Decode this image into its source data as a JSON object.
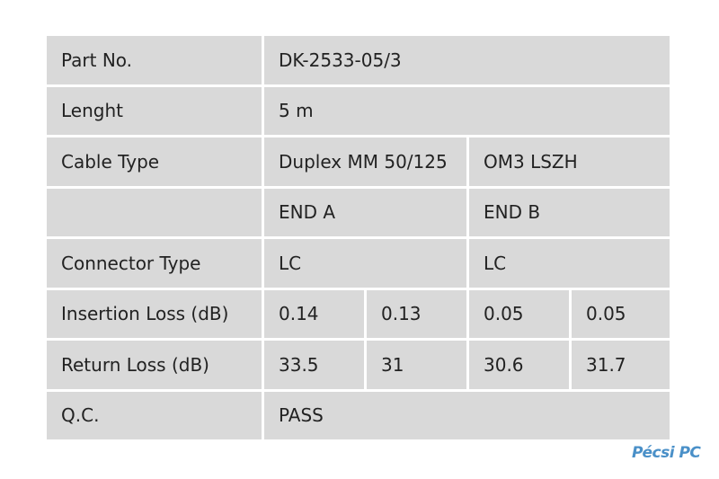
{
  "table": {
    "rows": [
      {
        "label": "Part No.",
        "cells": [
          "DK-2533-05/3"
        ]
      },
      {
        "label": "Lenght",
        "cells": [
          "5 m"
        ]
      },
      {
        "label": "Cable Type",
        "cells": [
          "Duplex MM 50/125",
          "OM3 LSZH"
        ]
      },
      {
        "label": null,
        "cells": [
          "END A",
          "END B"
        ]
      },
      {
        "label": "Connector Type",
        "cells": [
          "LC",
          "LC"
        ]
      },
      {
        "label": "Insertion Loss (dB)",
        "cells": [
          "0.14",
          "0.13",
          "0.05",
          "0.05"
        ]
      },
      {
        "label": "Return Loss (dB)",
        "cells": [
          "33.5",
          "31",
          "30.6",
          "31.7"
        ]
      },
      {
        "label": "Q.C.",
        "cells": [
          "PASS"
        ]
      }
    ]
  },
  "logo": {
    "text": "Pécsi PC"
  }
}
